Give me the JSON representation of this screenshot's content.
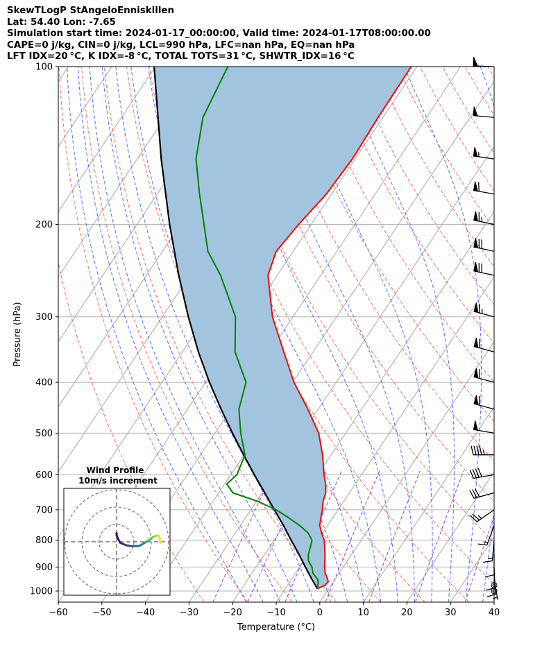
{
  "header": {
    "line1": "SkewTLogP StAngeloEnniskillen",
    "line2": "Lat: 54.40   Lon: -7.65",
    "line3": "Simulation start time: 2024-01-17_00:00:00, Valid time: 2024-01-17T08:00:00.00",
    "line4": "CAPE=0 j/kg, CIN=0 j/kg, LCL=990 hPa, LFC=nan hPa, EQ=nan hPa",
    "line5": "LFT IDX=20 °C, K IDX=-8 °C, TOTAL TOTS=31 °C, SHWTR_IDX=16 °C"
  },
  "chart_data": {
    "type": "line",
    "subtype": "skew-t log-p",
    "xlabel": "Temperature (°C)",
    "ylabel": "Pressure (hPa)",
    "xlim": [
      -60,
      40
    ],
    "ylim": [
      1050,
      100
    ],
    "y_scale": "log",
    "x_ticks": [
      -60,
      -50,
      -40,
      -30,
      -20,
      -10,
      0,
      10,
      20,
      30,
      40
    ],
    "x_tick_labels": [
      "−60",
      "−50",
      "−40",
      "−30",
      "−20",
      "−10",
      "0",
      "10",
      "20",
      "30",
      "40"
    ],
    "y_ticks": [
      1000,
      900,
      800,
      700,
      600,
      500,
      400,
      300,
      200,
      100
    ],
    "y_tick_labels": [
      "1000",
      "900",
      "800",
      "700",
      "600",
      "500",
      "400",
      "300",
      "200",
      "100"
    ],
    "grid": true,
    "colors": {
      "temperature": "#ff0000",
      "dewpoint": "#008000",
      "parcel": "#000000",
      "fill": "#a2c4de",
      "dry_adiabat": "#ff6b6b",
      "moist_adiabat": "#5a6bff",
      "mixing_ratio": "#9b3fd0",
      "isotherm": "#a9a9a9"
    },
    "series": [
      {
        "key": "temperature",
        "pressure": [
          990,
          975,
          960,
          950,
          925,
          900,
          875,
          850,
          825,
          800,
          775,
          750,
          725,
          700,
          675,
          650,
          625,
          600,
          550,
          500,
          450,
          400,
          350,
          300,
          250,
          225,
          200,
          175,
          150,
          125,
          100
        ],
        "temperature": [
          -2.6,
          -1.4,
          -1.2,
          -1.7,
          -3.2,
          -4.3,
          -5.2,
          -6.2,
          -7.3,
          -8.5,
          -10.2,
          -11.8,
          -12.7,
          -13.6,
          -14.7,
          -15.4,
          -16.8,
          -18.6,
          -22.0,
          -26.2,
          -32.4,
          -39.7,
          -46.7,
          -54.7,
          -62.1,
          -63.9,
          -62.9,
          -61.2,
          -60.6,
          -61.1,
          -61.3
        ]
      },
      {
        "key": "dewpoint",
        "pressure": [
          990,
          975,
          960,
          950,
          925,
          900,
          875,
          850,
          825,
          800,
          775,
          750,
          725,
          700,
          675,
          650,
          625,
          600,
          550,
          500,
          450,
          400,
          350,
          300,
          250,
          225,
          200,
          175,
          150,
          125,
          100
        ],
        "dewpoint": [
          -2.6,
          -3.0,
          -3.5,
          -4.0,
          -6.0,
          -7.2,
          -9.0,
          -10.0,
          -10.6,
          -11.3,
          -13.3,
          -16.4,
          -20.1,
          -24.2,
          -29.6,
          -36.7,
          -39.5,
          -38.6,
          -39.8,
          -44.1,
          -48.2,
          -50.7,
          -57.9,
          -63.2,
          -73.0,
          -79.6,
          -84.6,
          -90.3,
          -96.5,
          -101.3,
          -103.4
        ]
      },
      {
        "key": "parcel",
        "pressure": [
          990,
          950,
          900,
          850,
          800,
          750,
          700,
          650,
          600,
          550,
          500,
          450,
          400,
          350,
          300,
          250,
          200,
          150,
          100
        ],
        "temperature": [
          -2.6,
          -5.3,
          -8.7,
          -12.2,
          -16.1,
          -20.1,
          -24.6,
          -29.4,
          -34.6,
          -40.1,
          -46.0,
          -52.3,
          -59.1,
          -66.3,
          -74.0,
          -82.6,
          -92.5,
          -104.5,
          -120.3
        ]
      }
    ],
    "wind_barbs": {
      "pressure": [
        1000,
        975,
        950,
        925,
        900,
        850,
        800,
        750,
        700,
        650,
        600,
        550,
        500,
        450,
        400,
        350,
        300,
        250,
        225,
        200,
        175,
        150,
        125,
        100
      ],
      "speed_kt": [
        0,
        0,
        5,
        10,
        10,
        10,
        15,
        15,
        25,
        30,
        40,
        45,
        50,
        60,
        60,
        60,
        65,
        70,
        70,
        65,
        60,
        55,
        50,
        50
      ],
      "direction_deg": [
        0,
        0,
        170,
        175,
        178,
        180,
        185,
        200,
        235,
        255,
        260,
        270,
        280,
        285,
        285,
        285,
        285,
        282,
        282,
        282,
        280,
        278,
        275,
        272
      ]
    },
    "hodograph": {
      "title": "Wind Profile",
      "subtitle": "10m/s increment",
      "u": [
        0.0,
        0.0,
        0.5,
        1.0,
        2.0,
        3.0,
        4.5,
        5.5,
        6.5,
        7.5,
        8.5,
        9.5,
        10.5,
        11.5,
        12.5,
        13.0,
        13.5,
        14.0,
        14.5,
        15.0,
        15.5,
        16.0,
        16.5,
        17.0,
        17.5,
        18.0,
        18.5,
        19.0,
        19.5,
        20.0,
        20.5,
        21.0,
        21.5,
        22.0,
        22.5,
        23.0,
        23.5,
        24.0,
        24.3,
        24.6,
        24.9,
        25.2
      ],
      "v": [
        5.0,
        4.0,
        2.5,
        1.5,
        -0.5,
        -1.0,
        -1.6,
        -2.0,
        -2.2,
        -2.4,
        -2.5,
        -2.5,
        -2.5,
        -2.5,
        -2.5,
        -2.3,
        -2.1,
        -1.9,
        -1.6,
        -1.3,
        -1.0,
        -0.7,
        -0.4,
        -0.1,
        0.1,
        0.4,
        0.8,
        1.2,
        1.6,
        2.0,
        2.4,
        2.7,
        3.0,
        3.2,
        3.4,
        3.5,
        3.6,
        3.6,
        3.2,
        2.4,
        1.0,
        -0.8
      ],
      "rings_ms": [
        10,
        20,
        30
      ]
    }
  }
}
